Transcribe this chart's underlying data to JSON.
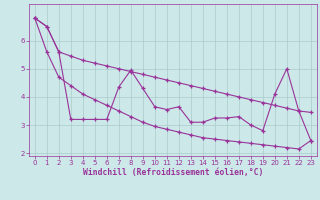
{
  "xlabel": "Windchill (Refroidissement éolien,°C)",
  "x_values": [
    0,
    1,
    2,
    3,
    4,
    5,
    6,
    7,
    8,
    9,
    10,
    11,
    12,
    13,
    14,
    15,
    16,
    17,
    18,
    19,
    20,
    21,
    22,
    23
  ],
  "line_upper_y": [
    6.8,
    6.5,
    5.6,
    5.45,
    5.3,
    5.2,
    5.1,
    5.0,
    4.9,
    4.8,
    4.7,
    4.6,
    4.5,
    4.4,
    4.3,
    4.2,
    4.1,
    4.0,
    3.9,
    3.8,
    3.7,
    3.6,
    3.5,
    3.45
  ],
  "line_lower_y": [
    6.8,
    5.6,
    4.7,
    4.4,
    4.1,
    3.9,
    3.7,
    3.5,
    3.3,
    3.1,
    2.95,
    2.85,
    2.75,
    2.65,
    2.55,
    2.5,
    2.45,
    2.4,
    2.35,
    2.3,
    2.25,
    2.2,
    2.15,
    2.45
  ],
  "line_data_y": [
    6.8,
    6.5,
    5.6,
    3.2,
    3.2,
    3.2,
    3.2,
    4.35,
    4.95,
    4.3,
    3.65,
    3.55,
    3.65,
    3.1,
    3.1,
    3.25,
    3.25,
    3.3,
    3.0,
    2.8,
    4.1,
    5.0,
    3.5,
    2.45
  ],
  "color": "#993399",
  "bg_color": "#cce8e8",
  "grid_color": "#aacccc",
  "ylim": [
    1.9,
    7.3
  ],
  "yticks": [
    2,
    3,
    4,
    5,
    6
  ],
  "xlim": [
    -0.5,
    23.5
  ],
  "tick_fontsize": 5.0,
  "xlabel_fontsize": 5.8
}
